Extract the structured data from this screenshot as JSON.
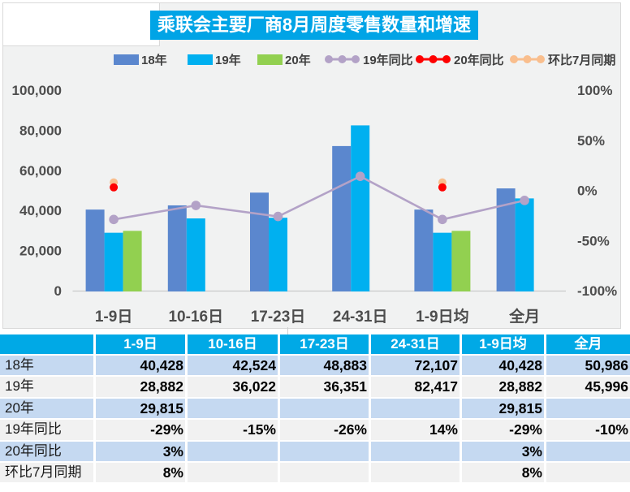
{
  "title": "乘联会主要厂商8月周度零售数量和增速",
  "colors": {
    "titleBg": "#00A4E6",
    "headerBg": "#00A9E6",
    "rowBlue": "#C5D9F1",
    "rowGray": "#F1F1F1",
    "chartBg": "#F1F2F2",
    "border": "#D9D9D9",
    "axisText": "#4D4D4D",
    "bar18": "#5B87CE",
    "bar19": "#00B0F0",
    "bar20": "#92D050",
    "line19": "#B3A2C7",
    "line20": "#FE0000",
    "lineMoM": "#F9BE8D"
  },
  "legend": [
    {
      "label": "18年",
      "type": "bar",
      "color": "#5B87CE"
    },
    {
      "label": "19年",
      "type": "bar",
      "color": "#00B0F0"
    },
    {
      "label": "20年",
      "type": "bar",
      "color": "#92D050"
    },
    {
      "label": "19年同比",
      "type": "line",
      "color": "#B3A2C7"
    },
    {
      "label": "20年同比",
      "type": "line",
      "color": "#FE0000"
    },
    {
      "label": "环比7月同期",
      "type": "line",
      "color": "#F9BE8D"
    }
  ],
  "chart_data": {
    "type": "bar+line",
    "categories": [
      "1-9日",
      "10-16日",
      "17-23日",
      "24-31日",
      "1-9日均",
      "全月"
    ],
    "bar_series": [
      {
        "name": "18年",
        "values": [
          40428,
          42524,
          48883,
          72107,
          40428,
          50986
        ]
      },
      {
        "name": "19年",
        "values": [
          28882,
          36022,
          36351,
          82417,
          28882,
          45996
        ]
      },
      {
        "name": "20年",
        "values": [
          29815,
          null,
          null,
          null,
          29815,
          null
        ]
      }
    ],
    "line_series": [
      {
        "name": "19年同比",
        "values": [
          -29,
          -15,
          -26,
          14,
          -29,
          -10
        ],
        "style": "line"
      },
      {
        "name": "20年同比",
        "values": [
          3,
          null,
          null,
          null,
          3,
          null
        ],
        "style": "points"
      },
      {
        "name": "环比7月同期",
        "values": [
          8,
          null,
          null,
          null,
          8,
          null
        ],
        "style": "points"
      }
    ],
    "left_axis": {
      "min": 0,
      "max": 100000,
      "step": 20000,
      "labels": [
        "100,000",
        "80,000",
        "60,000",
        "40,000",
        "20,000",
        "0"
      ]
    },
    "right_axis": {
      "min": -100,
      "max": 100,
      "step": 50,
      "labels": [
        "100%",
        "50%",
        "0%",
        "-50%",
        "-100%"
      ]
    }
  },
  "table": {
    "header": [
      "",
      "1-9日",
      "10-16日",
      "17-23日",
      "24-31日",
      "1-9日均",
      "全月"
    ],
    "rows": [
      {
        "label": "18年",
        "cells": [
          "40,428",
          "42,524",
          "48,883",
          "72,107",
          "40,428",
          "50,986"
        ]
      },
      {
        "label": "19年",
        "cells": [
          "28,882",
          "36,022",
          "36,351",
          "82,417",
          "28,882",
          "45,996"
        ]
      },
      {
        "label": "20年",
        "cells": [
          "29,815",
          "",
          "",
          "",
          "29,815",
          ""
        ]
      },
      {
        "label": "19年同比",
        "cells": [
          "-29%",
          "-15%",
          "-26%",
          "14%",
          "-29%",
          "-10%"
        ]
      },
      {
        "label": "20年同比",
        "cells": [
          "3%",
          "",
          "",
          "",
          "3%",
          ""
        ]
      },
      {
        "label": "环比7月同期",
        "cells": [
          "8%",
          "",
          "",
          "",
          "8%",
          ""
        ]
      }
    ]
  }
}
